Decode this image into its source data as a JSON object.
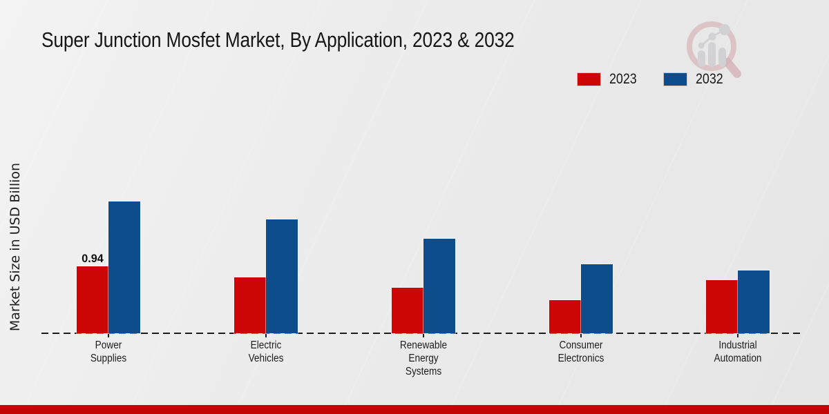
{
  "page": {
    "title": "Super Junction Mosfet Market, By Application, 2023 & 2032"
  },
  "ylabel": "Market Size in USD Billion",
  "legend": [
    {
      "label": "2023",
      "color": "#cc0505"
    },
    {
      "label": "2032",
      "color": "#0d4d8c"
    }
  ],
  "chart_data": {
    "type": "bar",
    "title": "Super Junction Mosfet Market, By Application, 2023 & 2032",
    "ylabel": "Market Size in USD Billion",
    "unit": "USD Billion",
    "categories": [
      "Power Supplies",
      "Electric Vehicles",
      "Renewable Energy Systems",
      "Consumer Electronics",
      "Industrial Automation"
    ],
    "category_label_lines": [
      [
        "Power",
        "Supplies"
      ],
      [
        "Electric",
        "Vehicles"
      ],
      [
        "Renewable",
        "Energy",
        "Systems"
      ],
      [
        "Consumer",
        "Electronics"
      ],
      [
        "Industrial",
        "Automation"
      ]
    ],
    "series": [
      {
        "name": "2023",
        "color": "#cc0505",
        "values": [
          0.94,
          0.79,
          0.64,
          0.47,
          0.75
        ]
      },
      {
        "name": "2032",
        "color": "#0d4d8c",
        "values": [
          1.85,
          1.6,
          1.33,
          0.97,
          0.88
        ]
      }
    ],
    "bar_labels": [
      {
        "series_index": 0,
        "category_index": 0,
        "text": "0.94"
      }
    ],
    "ylim": [
      0,
      2.0
    ],
    "grid": false,
    "legend_position": "top-right",
    "baseline_style": "dashed"
  },
  "branding": {
    "logo": "magnifier-bar-chart-logo",
    "footer_band_color": "#c30505"
  }
}
